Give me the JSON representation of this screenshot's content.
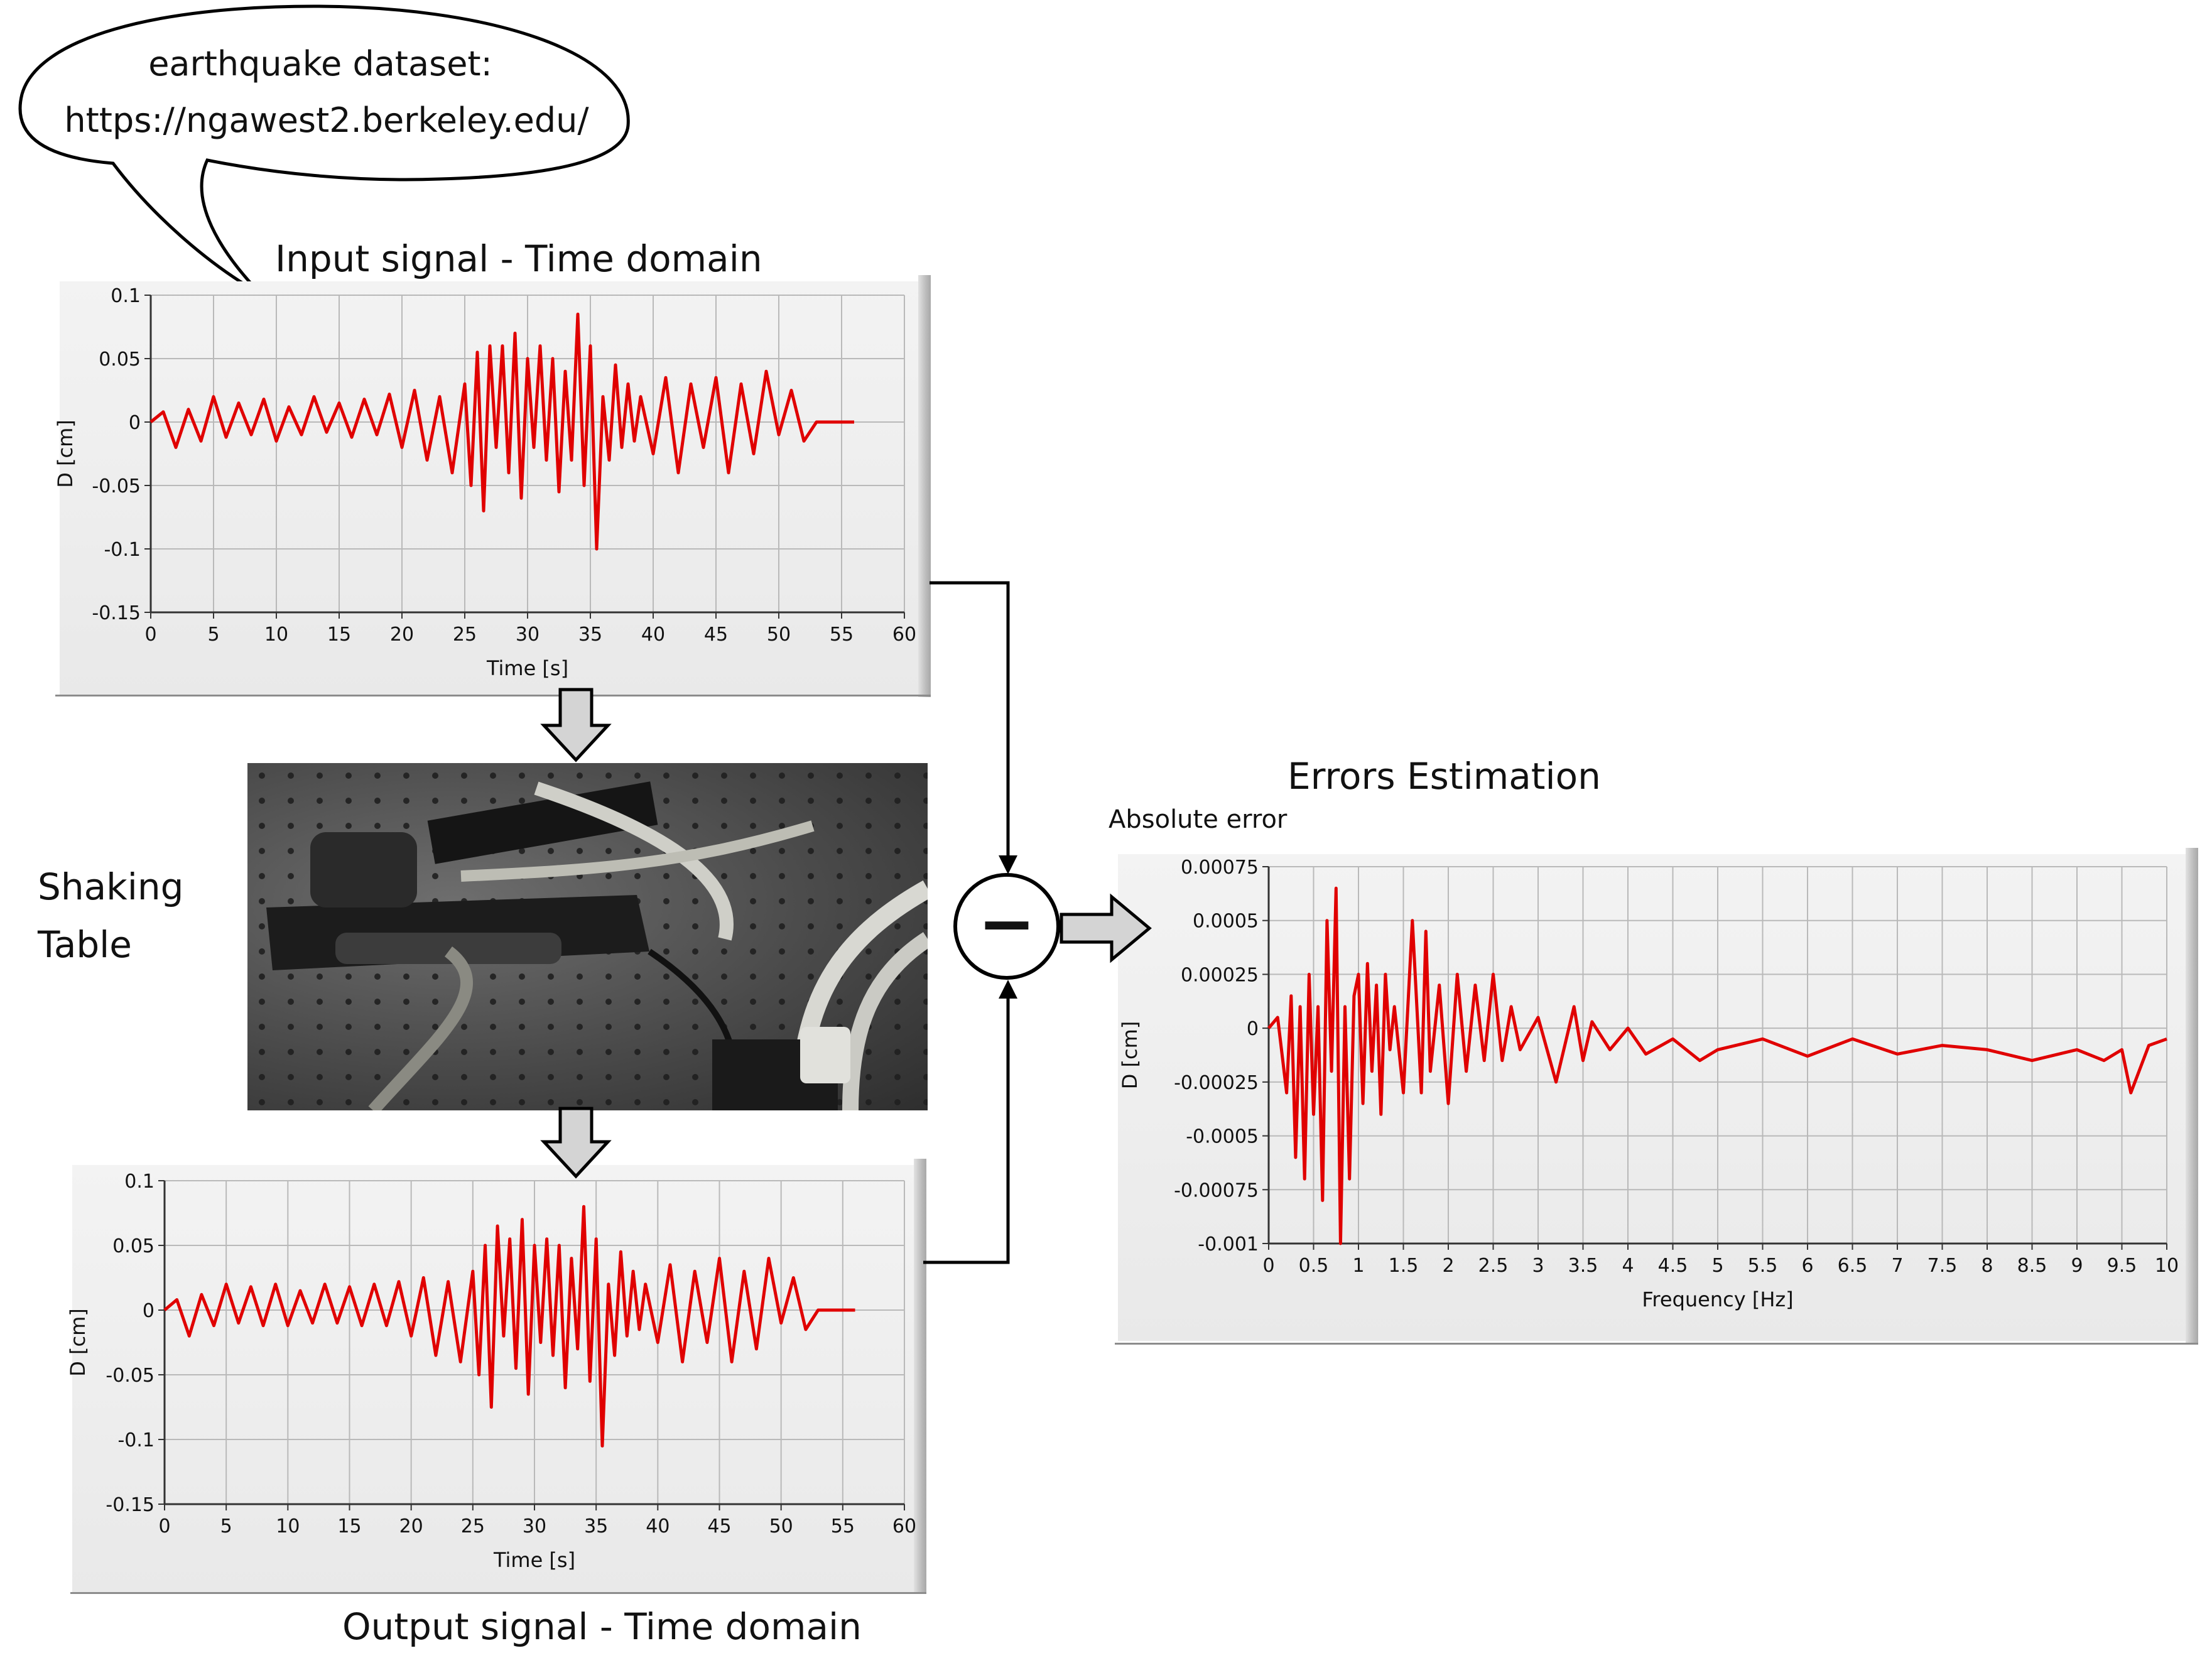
{
  "bubble": {
    "line1": "earthquake dataset:",
    "line2": "https://ngawest2.berkeley.edu/"
  },
  "labels": {
    "input_title": "Input signal - Time domain",
    "output_title": "Output signal - Time domain",
    "shaking_line1": "Shaking",
    "shaking_line2": "Table",
    "errors_title": "Errors Estimation",
    "absolute_error": "Absolute error",
    "minus_symbol": "−"
  },
  "colors": {
    "signal": "#e00000",
    "grid": "#b9b9b9",
    "arrow_fill": "#d4d4d4"
  },
  "chart_data": [
    {
      "id": "input",
      "type": "line",
      "title": "",
      "xlabel": "Time [s]",
      "ylabel": "D [cm]",
      "xlim": [
        0,
        60
      ],
      "ylim": [
        -0.15,
        0.1
      ],
      "xticks": [
        "0",
        "5",
        "10",
        "15",
        "20",
        "25",
        "30",
        "35",
        "40",
        "45",
        "50",
        "55",
        "60"
      ],
      "yticks": [
        "0.1",
        "0.05",
        "0",
        "-0.05",
        "-0.1",
        "-0.15"
      ],
      "series": [
        {
          "x": [
            0,
            1,
            2,
            3,
            4,
            5,
            6,
            7,
            8,
            9,
            10,
            11,
            12,
            13,
            14,
            15,
            16,
            17,
            18,
            19,
            20,
            21,
            22,
            23,
            24,
            25,
            25.5,
            26,
            26.5,
            27,
            27.5,
            28,
            28.5,
            29,
            29.5,
            30,
            30.5,
            31,
            31.5,
            32,
            32.5,
            33,
            33.5,
            34,
            34.5,
            35,
            35.5,
            36,
            36.5,
            37,
            37.5,
            38,
            38.5,
            39,
            40,
            41,
            42,
            43,
            44,
            45,
            46,
            47,
            48,
            49,
            50,
            51,
            52,
            53,
            54,
            55,
            56
          ],
          "y": [
            0,
            0.008,
            -0.02,
            0.01,
            -0.015,
            0.02,
            -0.012,
            0.015,
            -0.01,
            0.018,
            -0.015,
            0.012,
            -0.01,
            0.02,
            -0.008,
            0.015,
            -0.012,
            0.018,
            -0.01,
            0.022,
            -0.02,
            0.025,
            -0.03,
            0.02,
            -0.04,
            0.03,
            -0.05,
            0.055,
            -0.07,
            0.06,
            -0.02,
            0.06,
            -0.04,
            0.07,
            -0.06,
            0.05,
            -0.02,
            0.06,
            -0.03,
            0.05,
            -0.055,
            0.04,
            -0.03,
            0.085,
            -0.05,
            0.06,
            -0.1,
            0.02,
            -0.03,
            0.045,
            -0.02,
            0.03,
            -0.015,
            0.02,
            -0.025,
            0.035,
            -0.04,
            0.03,
            -0.02,
            0.035,
            -0.04,
            0.03,
            -0.025,
            0.04,
            -0.01,
            0.025,
            -0.015,
            0,
            0,
            0,
            0
          ]
        }
      ]
    },
    {
      "id": "output",
      "type": "line",
      "title": "",
      "xlabel": "Time [s]",
      "ylabel": "D [cm]",
      "xlim": [
        0,
        60
      ],
      "ylim": [
        -0.15,
        0.1
      ],
      "xticks": [
        "0",
        "5",
        "10",
        "15",
        "20",
        "25",
        "30",
        "35",
        "40",
        "45",
        "50",
        "55",
        "60"
      ],
      "yticks": [
        "0.1",
        "0.05",
        "0",
        "-0.05",
        "-0.1",
        "-0.15"
      ],
      "series": [
        {
          "x": [
            0,
            1,
            2,
            3,
            4,
            5,
            6,
            7,
            8,
            9,
            10,
            11,
            12,
            13,
            14,
            15,
            16,
            17,
            18,
            19,
            20,
            21,
            22,
            23,
            24,
            25,
            25.5,
            26,
            26.5,
            27,
            27.5,
            28,
            28.5,
            29,
            29.5,
            30,
            30.5,
            31,
            31.5,
            32,
            32.5,
            33,
            33.5,
            34,
            34.5,
            35,
            35.5,
            36,
            36.5,
            37,
            37.5,
            38,
            38.5,
            39,
            40,
            41,
            42,
            43,
            44,
            45,
            46,
            47,
            48,
            49,
            50,
            51,
            52,
            53,
            54,
            55,
            56
          ],
          "y": [
            0,
            0.008,
            -0.02,
            0.012,
            -0.012,
            0.02,
            -0.01,
            0.018,
            -0.012,
            0.02,
            -0.012,
            0.015,
            -0.01,
            0.02,
            -0.01,
            0.018,
            -0.012,
            0.02,
            -0.012,
            0.022,
            -0.02,
            0.025,
            -0.035,
            0.022,
            -0.04,
            0.03,
            -0.05,
            0.05,
            -0.075,
            0.065,
            -0.02,
            0.055,
            -0.045,
            0.07,
            -0.065,
            0.05,
            -0.025,
            0.055,
            -0.035,
            0.05,
            -0.06,
            0.04,
            -0.03,
            0.08,
            -0.055,
            0.055,
            -0.105,
            0.02,
            -0.035,
            0.045,
            -0.02,
            0.03,
            -0.015,
            0.02,
            -0.025,
            0.035,
            -0.04,
            0.03,
            -0.025,
            0.04,
            -0.04,
            0.03,
            -0.03,
            0.04,
            -0.01,
            0.025,
            -0.015,
            0,
            0,
            0,
            0
          ]
        }
      ]
    },
    {
      "id": "errors",
      "type": "line",
      "title": "",
      "xlabel": "Frequency [Hz]",
      "ylabel": "D [cm]",
      "xlim": [
        0,
        10
      ],
      "ylim": [
        -0.001,
        0.00075
      ],
      "xticks": [
        "0",
        "0.5",
        "1",
        "1.5",
        "2",
        "2.5",
        "3",
        "3.5",
        "4",
        "4.5",
        "5",
        "5.5",
        "6",
        "6.5",
        "7",
        "7.5",
        "8",
        "8.5",
        "9",
        "9.5",
        "10"
      ],
      "yticks": [
        "0.00075",
        "0.0005",
        "0.00025",
        "0",
        "-0.00025",
        "-0.0005",
        "-0.00075",
        "-0.001"
      ],
      "series": [
        {
          "x": [
            0,
            0.1,
            0.2,
            0.25,
            0.3,
            0.35,
            0.4,
            0.45,
            0.5,
            0.55,
            0.6,
            0.65,
            0.7,
            0.75,
            0.8,
            0.85,
            0.9,
            0.95,
            1.0,
            1.05,
            1.1,
            1.15,
            1.2,
            1.25,
            1.3,
            1.35,
            1.4,
            1.5,
            1.6,
            1.7,
            1.75,
            1.8,
            1.9,
            2.0,
            2.1,
            2.2,
            2.3,
            2.4,
            2.5,
            2.6,
            2.7,
            2.8,
            3.0,
            3.2,
            3.4,
            3.5,
            3.6,
            3.8,
            4.0,
            4.2,
            4.5,
            4.8,
            5.0,
            5.5,
            6.0,
            6.5,
            7.0,
            7.5,
            8.0,
            8.5,
            9.0,
            9.3,
            9.5,
            9.6,
            9.8,
            10
          ],
          "y": [
            0,
            5e-05,
            -0.0003,
            0.00015,
            -0.0006,
            0.0001,
            -0.0007,
            0.00025,
            -0.0004,
            0.0001,
            -0.0008,
            0.0005,
            -0.0002,
            0.00065,
            -0.001,
            0.0001,
            -0.0007,
            0.00015,
            0.00025,
            -0.00035,
            0.0003,
            -0.0002,
            0.0002,
            -0.0004,
            0.00025,
            -0.0001,
            0.0001,
            -0.0003,
            0.0005,
            -0.0003,
            0.00045,
            -0.0002,
            0.0002,
            -0.00035,
            0.00025,
            -0.0002,
            0.0002,
            -0.00015,
            0.00025,
            -0.00015,
            0.0001,
            -0.0001,
            5e-05,
            -0.00025,
            0.0001,
            -0.00015,
            3e-05,
            -0.0001,
            0,
            -0.00012,
            -5e-05,
            -0.00015,
            -0.0001,
            -5e-05,
            -0.00013,
            -5e-05,
            -0.00012,
            -8e-05,
            -0.0001,
            -0.00015,
            -0.0001,
            -0.00015,
            -0.0001,
            -0.0003,
            -8e-05,
            -5e-05
          ]
        }
      ]
    }
  ]
}
